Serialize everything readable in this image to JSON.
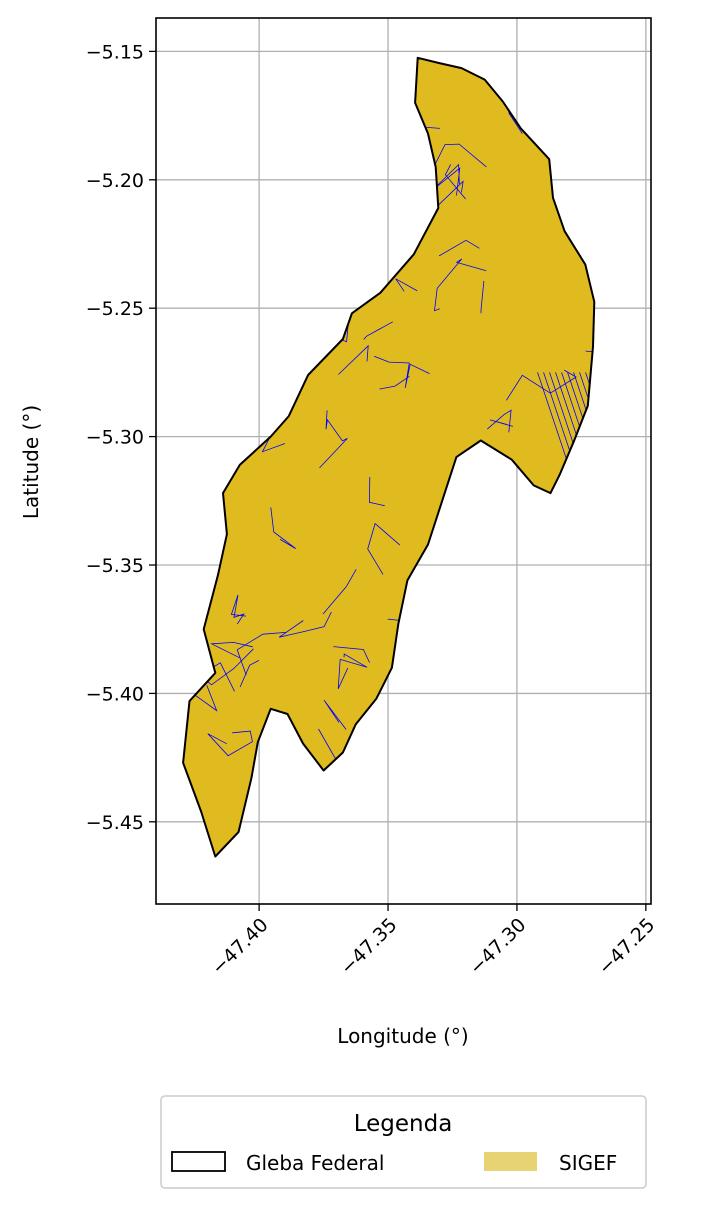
{
  "chart_data": {
    "type": "map",
    "title": "",
    "xlabel": "Longitude (°)",
    "ylabel": "Latitude (°)",
    "xlim": [
      -47.44,
      -47.248
    ],
    "ylim": [
      -5.482,
      -5.137
    ],
    "x_ticks": [
      -47.4,
      -47.35,
      -47.3,
      -47.25
    ],
    "x_tick_labels": [
      "−47.40",
      "−47.35",
      "−47.30",
      "−47.25"
    ],
    "y_ticks": [
      -5.15,
      -5.2,
      -5.25,
      -5.3,
      -5.35,
      -5.4,
      -5.45
    ],
    "y_tick_labels": [
      "−5.15",
      "−5.20",
      "−5.25",
      "−5.30",
      "−5.35",
      "−5.40",
      "−5.45"
    ],
    "grid": true,
    "legend": {
      "title": "Legenda",
      "placement": "bottom-center",
      "entries": [
        {
          "label": "Gleba Federal",
          "style": "outline",
          "color": "#000000"
        },
        {
          "label": "SIGEF",
          "style": "fill",
          "color": "#e7d274"
        }
      ]
    },
    "layers": [
      {
        "name": "Gleba Federal",
        "outline_color": "#000000",
        "coordinates": [
          [
            -47.3385,
            -5.1525
          ],
          [
            -47.3305,
            -5.1545
          ],
          [
            -47.3215,
            -5.1565
          ],
          [
            -47.3125,
            -5.161
          ],
          [
            -47.3055,
            -5.1695
          ],
          [
            -47.2985,
            -5.18
          ],
          [
            -47.2875,
            -5.192
          ],
          [
            -47.286,
            -5.207
          ],
          [
            -47.2815,
            -5.22
          ],
          [
            -47.2735,
            -5.233
          ],
          [
            -47.27,
            -5.2475
          ],
          [
            -47.2705,
            -5.265
          ],
          [
            -47.2725,
            -5.288
          ],
          [
            -47.278,
            -5.302
          ],
          [
            -47.2835,
            -5.315
          ],
          [
            -47.287,
            -5.322
          ],
          [
            -47.2935,
            -5.319
          ],
          [
            -47.302,
            -5.309
          ],
          [
            -47.314,
            -5.3015
          ],
          [
            -47.3235,
            -5.308
          ],
          [
            -47.328,
            -5.322
          ],
          [
            -47.3345,
            -5.342
          ],
          [
            -47.3425,
            -5.356
          ],
          [
            -47.346,
            -5.373
          ],
          [
            -47.3485,
            -5.39
          ],
          [
            -47.3545,
            -5.402
          ],
          [
            -47.3625,
            -5.412
          ],
          [
            -47.3675,
            -5.423
          ],
          [
            -47.375,
            -5.43
          ],
          [
            -47.383,
            -5.4195
          ],
          [
            -47.389,
            -5.408
          ],
          [
            -47.3955,
            -5.406
          ],
          [
            -47.4005,
            -5.419
          ],
          [
            -47.403,
            -5.433
          ],
          [
            -47.408,
            -5.454
          ],
          [
            -47.417,
            -5.4635
          ],
          [
            -47.4225,
            -5.446
          ],
          [
            -47.4295,
            -5.427
          ],
          [
            -47.427,
            -5.403
          ],
          [
            -47.417,
            -5.392
          ],
          [
            -47.4215,
            -5.375
          ],
          [
            -47.416,
            -5.354
          ],
          [
            -47.4125,
            -5.338
          ],
          [
            -47.414,
            -5.322
          ],
          [
            -47.4075,
            -5.311
          ],
          [
            -47.3955,
            -5.3
          ],
          [
            -47.3885,
            -5.292
          ],
          [
            -47.381,
            -5.276
          ],
          [
            -47.3675,
            -5.262
          ],
          [
            -47.364,
            -5.252
          ],
          [
            -47.353,
            -5.244
          ],
          [
            -47.34,
            -5.229
          ],
          [
            -47.3305,
            -5.211
          ],
          [
            -47.3315,
            -5.195
          ],
          [
            -47.3345,
            -5.182
          ],
          [
            -47.3395,
            -5.17
          ],
          [
            -47.3385,
            -5.1525
          ]
        ]
      },
      {
        "name": "SIGEF",
        "fill_color": "#e0bb1f",
        "parcel_line_color": "#0000ff"
      }
    ]
  }
}
